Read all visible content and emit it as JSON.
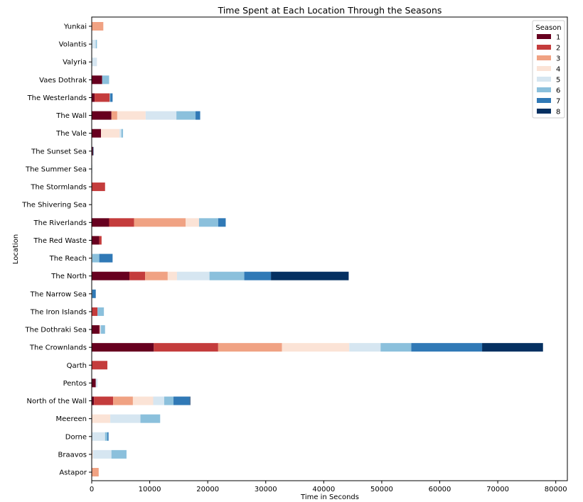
{
  "chart_data": {
    "type": "bar",
    "orientation": "horizontal",
    "stacked": true,
    "title": "Time Spent at Each Location Through the Seasons",
    "xlabel": "Time in Seconds",
    "ylabel": "Location",
    "xlim": [
      0,
      82000
    ],
    "xticks": [
      0,
      10000,
      20000,
      30000,
      40000,
      50000,
      60000,
      70000,
      80000
    ],
    "legend": {
      "title": "Season",
      "placement": "top-right"
    },
    "grid": false,
    "categories": [
      "Yunkai",
      "Volantis",
      "Valyria",
      "Vaes Dothrak",
      "The Westerlands",
      "The Wall",
      "The Vale",
      "The Sunset Sea",
      "The Summer Sea",
      "The Stormlands",
      "The Shivering Sea",
      "The Riverlands",
      "The Red Waste",
      "The Reach",
      "The North",
      "The Narrow Sea",
      "The Iron Islands",
      "The Dothraki Sea",
      "The Crownlands",
      "Qarth",
      "Pentos",
      "North of the Wall",
      "Meereen",
      "Dorne",
      "Braavos",
      "Astapor"
    ],
    "series": [
      {
        "name": "1",
        "color": "#67001f",
        "values": [
          0,
          0,
          0,
          1800,
          500,
          3400,
          1600,
          200,
          0,
          0,
          0,
          3000,
          1300,
          0,
          6500,
          0,
          0,
          1300,
          10700,
          0,
          700,
          400,
          0,
          0,
          0,
          0
        ]
      },
      {
        "name": "2",
        "color": "#c43c3c",
        "values": [
          0,
          0,
          0,
          0,
          2600,
          0,
          0,
          0,
          0,
          2300,
          0,
          4300,
          400,
          0,
          2700,
          0,
          1000,
          100,
          11100,
          2700,
          0,
          3300,
          0,
          0,
          0,
          0
        ]
      },
      {
        "name": "3",
        "color": "#f0a283",
        "values": [
          2000,
          0,
          0,
          0,
          0,
          1000,
          0,
          0,
          0,
          0,
          0,
          8900,
          0,
          0,
          3900,
          0,
          0,
          0,
          11000,
          0,
          0,
          3400,
          0,
          0,
          0,
          1200
        ]
      },
      {
        "name": "4",
        "color": "#fbe3d6",
        "values": [
          0,
          0,
          0,
          0,
          0,
          4900,
          3200,
          0,
          0,
          0,
          0,
          2300,
          0,
          0,
          1600,
          0,
          0,
          0,
          11600,
          0,
          0,
          3500,
          3200,
          0,
          200,
          0
        ]
      },
      {
        "name": "5",
        "color": "#d6e6f1",
        "values": [
          0,
          700,
          900,
          0,
          0,
          5300,
          300,
          0,
          100,
          0,
          0,
          0,
          0,
          100,
          5600,
          0,
          0,
          200,
          5400,
          0,
          300,
          1900,
          5200,
          2300,
          3200,
          0
        ]
      },
      {
        "name": "6",
        "color": "#8bc0dc",
        "values": [
          0,
          200,
          0,
          1200,
          100,
          3300,
          300,
          0,
          0,
          0,
          0,
          3300,
          0,
          1200,
          6000,
          100,
          1100,
          700,
          5300,
          0,
          0,
          1600,
          3400,
          400,
          2600,
          0
        ]
      },
      {
        "name": "7",
        "color": "#3079b6",
        "values": [
          0,
          0,
          0,
          0,
          400,
          800,
          0,
          0,
          0,
          0,
          0,
          1300,
          0,
          2300,
          4600,
          600,
          0,
          0,
          12200,
          0,
          0,
          2800,
          0,
          200,
          0,
          0
        ]
      },
      {
        "name": "8",
        "color": "#053061",
        "values": [
          0,
          0,
          0,
          0,
          0,
          0,
          0,
          100,
          0,
          0,
          0,
          0,
          0,
          0,
          13400,
          0,
          0,
          0,
          10500,
          0,
          0,
          100,
          0,
          0,
          0,
          0
        ]
      }
    ]
  }
}
